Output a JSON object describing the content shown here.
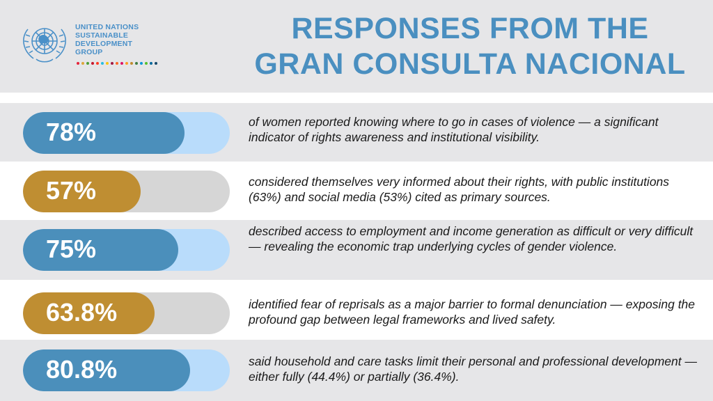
{
  "logo": {
    "lines": [
      "UNITED NATIONS",
      "SUSTAINABLE",
      "DEVELOPMENT",
      "GROUP"
    ],
    "icon": "un-emblem-icon",
    "dot_colors": [
      "#e5243b",
      "#dda63a",
      "#4c9f38",
      "#c5192d",
      "#ff3a21",
      "#26bde2",
      "#fcc30b",
      "#a21942",
      "#fd6925",
      "#dd1367",
      "#fd9d24",
      "#bf8b2e",
      "#3f7e44",
      "#0a97d9",
      "#56c02b",
      "#00689d",
      "#19486a"
    ]
  },
  "header": {
    "title_line1": "RESPONSES FROM THE",
    "title_line2": "GRAN CONSULTA NACIONAL"
  },
  "colors": {
    "blue_fill": "#4b8fbb",
    "blue_track": "#b9dcfb",
    "gold_fill": "#bf8e32",
    "gold_track": "#d6d6d6",
    "title": "#4a8fc0",
    "band_gray": "#e6e6e8"
  },
  "chart_data": {
    "type": "bar",
    "orientation": "horizontal",
    "xlim": [
      0,
      100
    ],
    "grid": false,
    "items": [
      {
        "label": "78%",
        "value": 78,
        "style": "blue",
        "text": "of women reported knowing where to go in cases of violence — a significant indicator of rights awareness and institutional visibility."
      },
      {
        "label": "57%",
        "value": 57,
        "style": "gold",
        "text": "considered themselves very informed about their rights, with public institutions (63%) and social media (53%) cited as primary sources."
      },
      {
        "label": "75%",
        "value": 75,
        "style": "blue",
        "text": "described access to employment and income generation as difficult or very difficult — revealing the economic trap underlying cycles of gender violence."
      },
      {
        "label": "63.8%",
        "value": 63.8,
        "style": "gold",
        "text": "identified fear of reprisals as a major barrier to formal denunciation — exposing the profound gap between legal frameworks and lived safety."
      },
      {
        "label": "80.8%",
        "value": 80.8,
        "style": "blue",
        "text": "said household and care tasks limit their personal and professional development — either fully (44.4%) or partially (36.4%)."
      }
    ]
  }
}
